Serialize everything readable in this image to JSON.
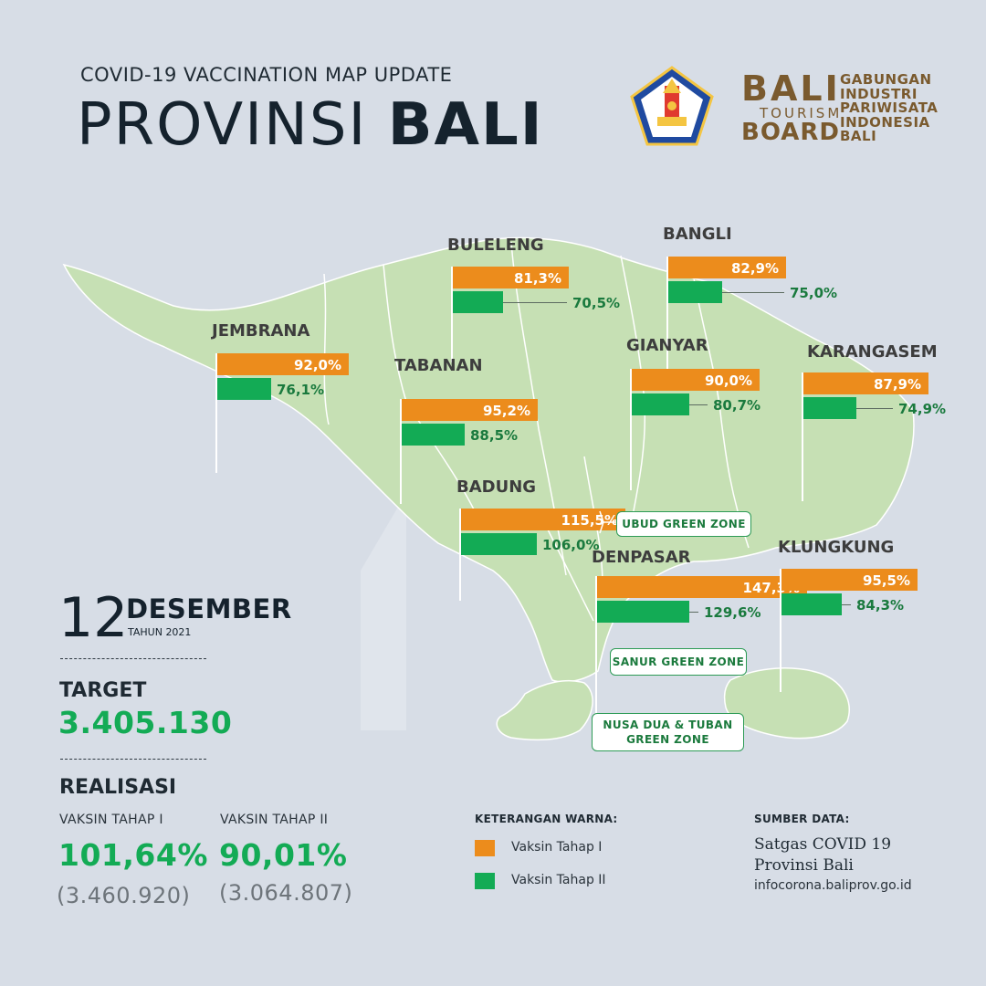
{
  "header": {
    "subtitle": "COVID-19 VACCINATION MAP UPDATE",
    "title_light": "PROVINSI ",
    "title_bold": "BALI"
  },
  "logos": {
    "bali_tourism_board": {
      "word1": "BALI",
      "word2": "TOURISM",
      "word3": "BOARD"
    },
    "gipi": {
      "line1": "GABUNGAN",
      "line2": "INDUSTRI",
      "line3": "PARIWISATA",
      "line4": "INDONESIA",
      "line5": "BALI"
    }
  },
  "colors": {
    "vaksin_tahap_1": "#ec8c1c",
    "vaksin_tahap_2": "#13ab55",
    "map_land": "#c6e0b4",
    "background": "#d7dde6"
  },
  "chart_data": {
    "type": "bar",
    "series": [
      {
        "name": "Vaksin Tahap I",
        "color": "#ec8c1c"
      },
      {
        "name": "Vaksin Tahap II",
        "color": "#13ab55"
      }
    ],
    "regions": [
      {
        "name": "BULELENG",
        "tahap1": 81.3,
        "tahap1_label": "81,3%",
        "tahap2": 70.5,
        "tahap2_label": "70,5%"
      },
      {
        "name": "BANGLI",
        "tahap1": 82.9,
        "tahap1_label": "82,9%",
        "tahap2": 75.0,
        "tahap2_label": "75,0%"
      },
      {
        "name": "JEMBRANA",
        "tahap1": 92.0,
        "tahap1_label": "92,0%",
        "tahap2": 76.1,
        "tahap2_label": "76,1%"
      },
      {
        "name": "TABANAN",
        "tahap1": 95.2,
        "tahap1_label": "95,2%",
        "tahap2": 88.5,
        "tahap2_label": "88,5%"
      },
      {
        "name": "GIANYAR",
        "tahap1": 90.0,
        "tahap1_label": "90,0%",
        "tahap2": 80.7,
        "tahap2_label": "80,7%"
      },
      {
        "name": "KARANGASEM",
        "tahap1": 87.9,
        "tahap1_label": "87,9%",
        "tahap2": 74.9,
        "tahap2_label": "74,9%"
      },
      {
        "name": "BADUNG",
        "tahap1": 115.5,
        "tahap1_label": "115,5%",
        "tahap2": 106.0,
        "tahap2_label": "106,0%"
      },
      {
        "name": "DENPASAR",
        "tahap1": 147.3,
        "tahap1_label": "147,3%",
        "tahap2": 129.6,
        "tahap2_label": "129,6%"
      },
      {
        "name": "KLUNGKUNG",
        "tahap1": 95.5,
        "tahap1_label": "95,5%",
        "tahap2": 84.3,
        "tahap2_label": "84,3%"
      }
    ]
  },
  "zones": {
    "ubud": "UBUD GREEN ZONE",
    "sanur": "SANUR GREEN ZONE",
    "nusa_dua_line1": "NUSA DUA & TUBAN",
    "nusa_dua_line2": "GREEN ZONE"
  },
  "date": {
    "day": "12",
    "month": "DESEMBER",
    "year": "TAHUN 2021"
  },
  "summary": {
    "target_label": "TARGET",
    "target_value": "3.405.130",
    "realisasi_label": "REALISASI",
    "tahap1_label": "VAKSIN TAHAP I",
    "tahap1_pct": "101,64%",
    "tahap1_count": "(3.460.920)",
    "tahap2_label": "VAKSIN TAHAP II",
    "tahap2_pct": "90,01%",
    "tahap2_count": "(3.064.807)"
  },
  "legend": {
    "title": "KETERANGAN WARNA:",
    "item1": "Vaksin Tahap I",
    "item2": "Vaksin Tahap II"
  },
  "source": {
    "title": "SUMBER DATA:",
    "line1": "Satgas COVID 19",
    "line2": "Provinsi Bali",
    "url": "infocorona.baliprov.go.id"
  }
}
